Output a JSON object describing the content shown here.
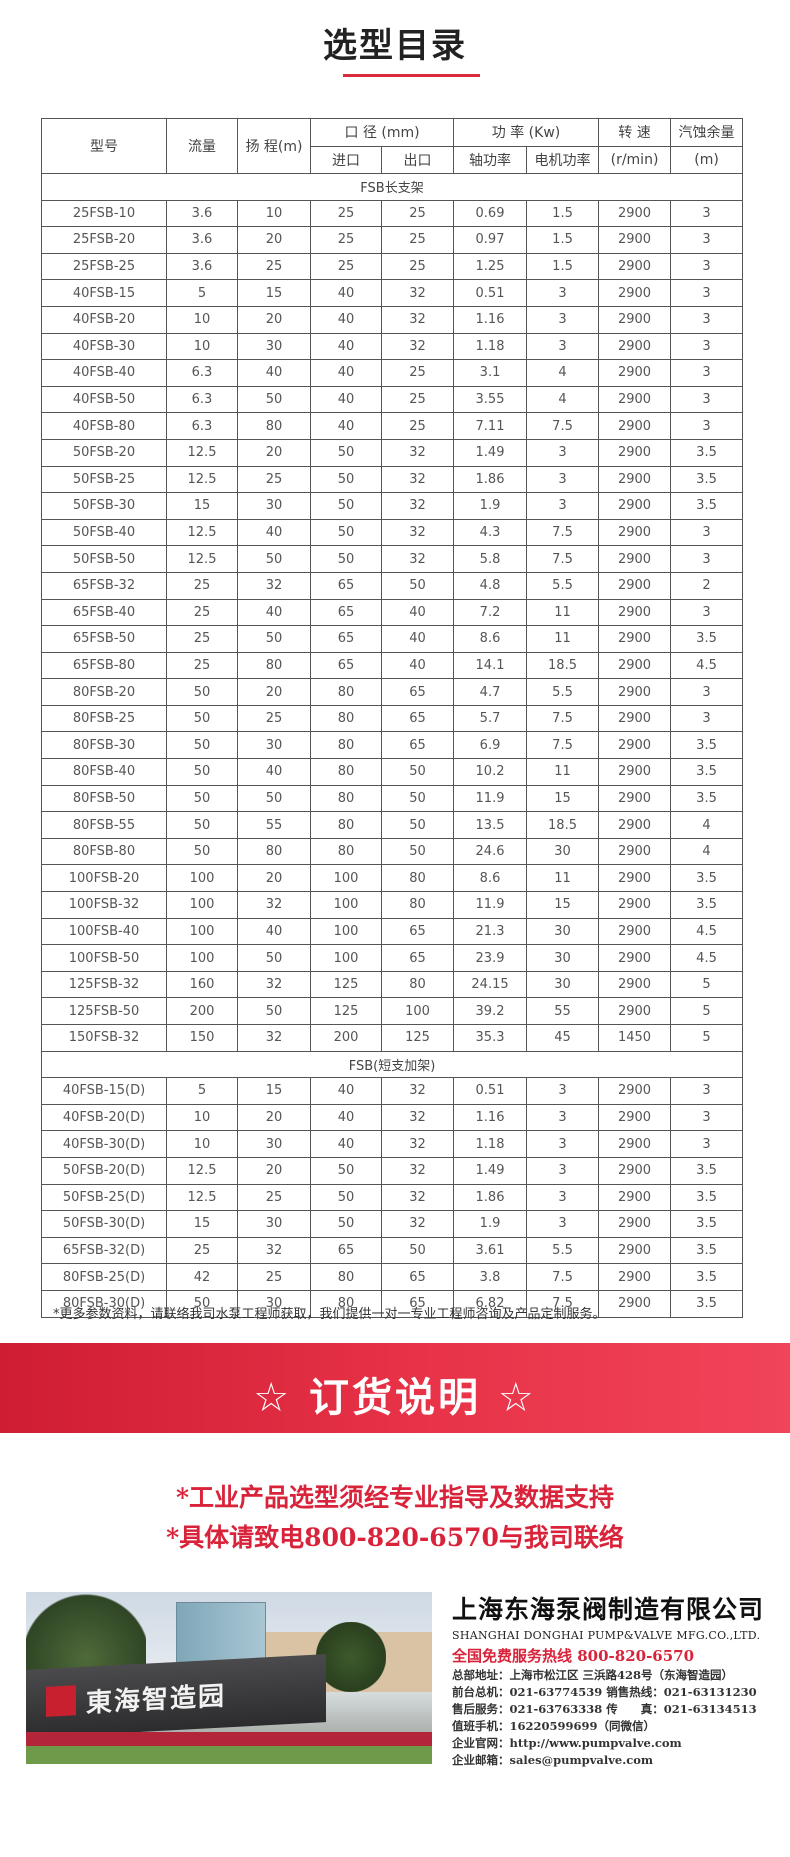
{
  "title": "选型目录",
  "table": {
    "headers": {
      "model": "型号",
      "flow": "流量",
      "head": "扬 程(m)",
      "diameter": "口 径 (mm)",
      "power": "功 率 (Kw)",
      "speed": "转 速",
      "npsh": "汽蚀余量",
      "inlet": "进口",
      "outlet": "出口",
      "shaft_power": "轴功率",
      "motor_power": "电机功率",
      "speed_unit": "(r/min)",
      "npsh_unit": "(m)"
    },
    "sections": [
      {
        "title": "FSB长支架",
        "rows": [
          [
            "25FSB-10",
            "3.6",
            "10",
            "25",
            "25",
            "0.69",
            "1.5",
            "2900",
            "3"
          ],
          [
            "25FSB-20",
            "3.6",
            "20",
            "25",
            "25",
            "0.97",
            "1.5",
            "2900",
            "3"
          ],
          [
            "25FSB-25",
            "3.6",
            "25",
            "25",
            "25",
            "1.25",
            "1.5",
            "2900",
            "3"
          ],
          [
            "40FSB-15",
            "5",
            "15",
            "40",
            "32",
            "0.51",
            "3",
            "2900",
            "3"
          ],
          [
            "40FSB-20",
            "10",
            "20",
            "40",
            "32",
            "1.16",
            "3",
            "2900",
            "3"
          ],
          [
            "40FSB-30",
            "10",
            "30",
            "40",
            "32",
            "1.18",
            "3",
            "2900",
            "3"
          ],
          [
            "40FSB-40",
            "6.3",
            "40",
            "40",
            "25",
            "3.1",
            "4",
            "2900",
            "3"
          ],
          [
            "40FSB-50",
            "6.3",
            "50",
            "40",
            "25",
            "3.55",
            "4",
            "2900",
            "3"
          ],
          [
            "40FSB-80",
            "6.3",
            "80",
            "40",
            "25",
            "7.11",
            "7.5",
            "2900",
            "3"
          ],
          [
            "50FSB-20",
            "12.5",
            "20",
            "50",
            "32",
            "1.49",
            "3",
            "2900",
            "3.5"
          ],
          [
            "50FSB-25",
            "12.5",
            "25",
            "50",
            "32",
            "1.86",
            "3",
            "2900",
            "3.5"
          ],
          [
            "50FSB-30",
            "15",
            "30",
            "50",
            "32",
            "1.9",
            "3",
            "2900",
            "3.5"
          ],
          [
            "50FSB-40",
            "12.5",
            "40",
            "50",
            "32",
            "4.3",
            "7.5",
            "2900",
            "3"
          ],
          [
            "50FSB-50",
            "12.5",
            "50",
            "50",
            "32",
            "5.8",
            "7.5",
            "2900",
            "3"
          ],
          [
            "65FSB-32",
            "25",
            "32",
            "65",
            "50",
            "4.8",
            "5.5",
            "2900",
            "2"
          ],
          [
            "65FSB-40",
            "25",
            "40",
            "65",
            "40",
            "7.2",
            "11",
            "2900",
            "3"
          ],
          [
            "65FSB-50",
            "25",
            "50",
            "65",
            "40",
            "8.6",
            "11",
            "2900",
            "3.5"
          ],
          [
            "65FSB-80",
            "25",
            "80",
            "65",
            "40",
            "14.1",
            "18.5",
            "2900",
            "4.5"
          ],
          [
            "80FSB-20",
            "50",
            "20",
            "80",
            "65",
            "4.7",
            "5.5",
            "2900",
            "3"
          ],
          [
            "80FSB-25",
            "50",
            "25",
            "80",
            "65",
            "5.7",
            "7.5",
            "2900",
            "3"
          ],
          [
            "80FSB-30",
            "50",
            "30",
            "80",
            "65",
            "6.9",
            "7.5",
            "2900",
            "3.5"
          ],
          [
            "80FSB-40",
            "50",
            "40",
            "80",
            "50",
            "10.2",
            "11",
            "2900",
            "3.5"
          ],
          [
            "80FSB-50",
            "50",
            "50",
            "80",
            "50",
            "11.9",
            "15",
            "2900",
            "3.5"
          ],
          [
            "80FSB-55",
            "50",
            "55",
            "80",
            "50",
            "13.5",
            "18.5",
            "2900",
            "4"
          ],
          [
            "80FSB-80",
            "50",
            "80",
            "80",
            "50",
            "24.6",
            "30",
            "2900",
            "4"
          ],
          [
            "100FSB-20",
            "100",
            "20",
            "100",
            "80",
            "8.6",
            "11",
            "2900",
            "3.5"
          ],
          [
            "100FSB-32",
            "100",
            "32",
            "100",
            "80",
            "11.9",
            "15",
            "2900",
            "3.5"
          ],
          [
            "100FSB-40",
            "100",
            "40",
            "100",
            "65",
            "21.3",
            "30",
            "2900",
            "4.5"
          ],
          [
            "100FSB-50",
            "100",
            "50",
            "100",
            "65",
            "23.9",
            "30",
            "2900",
            "4.5"
          ],
          [
            "125FSB-32",
            "160",
            "32",
            "125",
            "80",
            "24.15",
            "30",
            "2900",
            "5"
          ],
          [
            "125FSB-50",
            "200",
            "50",
            "125",
            "100",
            "39.2",
            "55",
            "2900",
            "5"
          ],
          [
            "150FSB-32",
            "150",
            "32",
            "200",
            "125",
            "35.3",
            "45",
            "1450",
            "5"
          ]
        ]
      },
      {
        "title": "FSB(短支加架)",
        "rows": [
          [
            "40FSB-15(D)",
            "5",
            "15",
            "40",
            "32",
            "0.51",
            "3",
            "2900",
            "3"
          ],
          [
            "40FSB-20(D)",
            "10",
            "20",
            "40",
            "32",
            "1.16",
            "3",
            "2900",
            "3"
          ],
          [
            "40FSB-30(D)",
            "10",
            "30",
            "40",
            "32",
            "1.18",
            "3",
            "2900",
            "3"
          ],
          [
            "50FSB-20(D)",
            "12.5",
            "20",
            "50",
            "32",
            "1.49",
            "3",
            "2900",
            "3.5"
          ],
          [
            "50FSB-25(D)",
            "12.5",
            "25",
            "50",
            "32",
            "1.86",
            "3",
            "2900",
            "3.5"
          ],
          [
            "50FSB-30(D)",
            "15",
            "30",
            "50",
            "32",
            "1.9",
            "3",
            "2900",
            "3.5"
          ],
          [
            "65FSB-32(D)",
            "25",
            "32",
            "65",
            "50",
            "3.61",
            "5.5",
            "2900",
            "3.5"
          ],
          [
            "80FSB-25(D)",
            "42",
            "25",
            "80",
            "65",
            "3.8",
            "7.5",
            "2900",
            "3.5"
          ],
          [
            "80FSB-30(D)",
            "50",
            "30",
            "80",
            "65",
            "6.82",
            "7.5",
            "2900",
            "3.5"
          ]
        ]
      }
    ]
  },
  "note": "*更多参数资料，请联络我司水泵工程师获取，我们提供一对一专业工程师咨询及产品定制服务。",
  "order": {
    "title": "☆ 订货说明 ☆",
    "line1": "*工业产品选型须经专业指导及数据支持",
    "line2": "*具体请致电800-820-6570与我司联络"
  },
  "photo": {
    "sign_text": "東海智造园"
  },
  "company": {
    "name": "上海东海泵阀制造有限公司",
    "name_en": "SHANGHAI DONGHAI PUMP&VALVE MFG.CO.,LTD.",
    "hotline": "全国免费服务热线  800-820-6570",
    "lines": [
      "总部地址：上海市松江区 三浜路428号（东海智造园）",
      "前台总机：021-63774539   销售热线：021-63131230",
      "售后服务：021-63763338   传　　真：021-63134513",
      "值班手机：16220599699（同微信）",
      "企业官网：http://www.pumpvalve.com",
      "企业邮箱：sales@pumpvalve.com"
    ]
  },
  "colors": {
    "accent": "#d92b3a",
    "band": "#e1293f"
  }
}
